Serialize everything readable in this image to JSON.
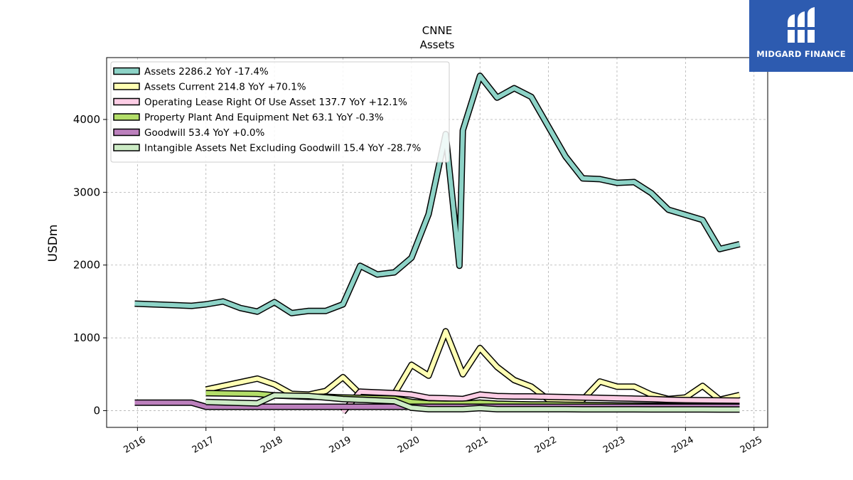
{
  "chart_data": {
    "type": "line",
    "title": "CNNE",
    "subtitle": "Assets",
    "ylabel": "USDm",
    "xlabel": "",
    "xlim": [
      2015.55,
      2025.2
    ],
    "ylim": [
      -230,
      4850
    ],
    "x_ticks": [
      2016,
      2017,
      2018,
      2019,
      2020,
      2021,
      2022,
      2023,
      2024,
      2025
    ],
    "x_tick_labels": [
      "2016",
      "2017",
      "2018",
      "2019",
      "2020",
      "2021",
      "2022",
      "2023",
      "2024",
      "2025"
    ],
    "y_ticks": [
      0,
      1000,
      2000,
      3000,
      4000
    ],
    "y_tick_labels": [
      "0",
      "1000",
      "2000",
      "3000",
      "4000"
    ],
    "grid": true,
    "legend_position": "top-left",
    "series": [
      {
        "name": "Assets  2286.2 YoY -17.4%",
        "color": "#8dd3c7",
        "x": [
          2015.96,
          2016.79,
          2017.0,
          2017.25,
          2017.5,
          2017.75,
          2018.0,
          2018.25,
          2018.5,
          2018.75,
          2019.0,
          2019.25,
          2019.5,
          2019.75,
          2020.0,
          2020.25,
          2020.5,
          2020.7,
          2020.75,
          2021.0,
          2021.25,
          2021.5,
          2021.75,
          2022.0,
          2022.25,
          2022.5,
          2022.75,
          2023.0,
          2023.25,
          2023.5,
          2023.75,
          2024.0,
          2024.25,
          2024.5,
          2024.79
        ],
        "y": [
          1470,
          1440,
          1460,
          1500,
          1410,
          1360,
          1490,
          1340,
          1370,
          1370,
          1460,
          1990,
          1870,
          1900,
          2100,
          2700,
          3800,
          1990,
          3850,
          4600,
          4300,
          4430,
          4310,
          3900,
          3490,
          3190,
          3180,
          3130,
          3140,
          2990,
          2760,
          2690,
          2620,
          2220,
          2286.2
        ]
      },
      {
        "name": "Assets Current  214.8 YoY +70.1%",
        "color": "#ffffb3",
        "x": [
          2017.0,
          2017.75,
          2018.0,
          2018.25,
          2018.5,
          2018.75,
          2019.0,
          2019.25,
          2019.5,
          2019.75,
          2020.0,
          2020.25,
          2020.5,
          2020.75,
          2021.0,
          2021.25,
          2021.5,
          2021.75,
          2022.0,
          2022.25,
          2022.5,
          2022.75,
          2023.0,
          2023.25,
          2023.5,
          2023.75,
          2024.0,
          2024.25,
          2024.5,
          2024.79
        ],
        "y": [
          290,
          440,
          360,
          230,
          220,
          270,
          460,
          230,
          230,
          230,
          630,
          480,
          1090,
          500,
          860,
          600,
          420,
          330,
          150,
          150,
          150,
          400,
          330,
          330,
          220,
          160,
          180,
          340,
          150,
          214.8
        ]
      },
      {
        "name": "Operating Lease Right Of Use Asset  137.7 YoY +12.1%",
        "color": "#fccde5",
        "x": [
          2019.0,
          2019.25,
          2019.5,
          2019.75,
          2020.0,
          2020.25,
          2020.5,
          2020.75,
          2021.0,
          2021.25,
          2021.5,
          2021.75,
          2022.0,
          2022.25,
          2022.5,
          2022.75,
          2023.0,
          2023.25,
          2023.5,
          2023.75,
          2024.0,
          2024.25,
          2024.5,
          2024.79
        ],
        "y": [
          -20,
          260,
          250,
          240,
          220,
          175,
          170,
          160,
          220,
          200,
          195,
          195,
          190,
          185,
          180,
          175,
          170,
          165,
          160,
          150,
          145,
          142,
          140,
          137.7
        ]
      },
      {
        "name": "Property Plant And Equipment Net  63.1 YoY -0.3%",
        "color": "#b3de69",
        "x": [
          2017.0,
          2017.75,
          2018.0,
          2018.25,
          2018.5,
          2018.75,
          2019.0,
          2019.25,
          2019.5,
          2019.75,
          2020.0,
          2020.25,
          2020.5,
          2020.75,
          2021.0,
          2021.25,
          2021.5,
          2021.75,
          2022.0,
          2022.25,
          2022.5,
          2022.75,
          2023.0,
          2023.25,
          2023.5,
          2023.75,
          2024.0,
          2024.25,
          2024.5,
          2024.79
        ],
        "y": [
          240,
          230,
          210,
          200,
          190,
          190,
          180,
          175,
          170,
          165,
          120,
          100,
          95,
          95,
          110,
          95,
          90,
          85,
          85,
          80,
          78,
          75,
          72,
          70,
          68,
          66,
          64,
          63,
          63,
          63.1
        ]
      },
      {
        "name": "Goodwill  53.4 YoY +0.0%",
        "color": "#bc80bd",
        "x": [
          2015.96,
          2016.79,
          2017.0,
          2017.75,
          2018.0,
          2018.75,
          2019.0,
          2019.75,
          2020.0,
          2020.75,
          2021.0,
          2021.75,
          2022.0,
          2022.75,
          2023.0,
          2023.75,
          2024.0,
          2024.79
        ],
        "y": [
          110,
          110,
          53.4,
          53.4,
          53.4,
          53.4,
          53.4,
          53.4,
          53.4,
          53.4,
          53.4,
          53.4,
          53.4,
          53.4,
          53.4,
          53.4,
          53.4,
          53.4
        ]
      },
      {
        "name": "Intangible Assets Net Excluding Goodwill  15.4 YoY -28.7%",
        "color": "#ccebc5",
        "x": [
          2017.0,
          2017.75,
          2018.0,
          2018.25,
          2018.5,
          2018.75,
          2019.0,
          2019.25,
          2019.5,
          2019.75,
          2020.0,
          2020.25,
          2020.5,
          2020.75,
          2021.0,
          2021.25,
          2021.5,
          2021.75,
          2022.0,
          2022.25,
          2022.5,
          2022.75,
          2023.0,
          2023.25,
          2023.5,
          2023.75,
          2024.0,
          2024.25,
          2024.5,
          2024.79
        ],
        "y": [
          120,
          100,
          210,
          205,
          200,
          180,
          160,
          150,
          140,
          130,
          40,
          20,
          20,
          20,
          35,
          20,
          20,
          20,
          20,
          20,
          18,
          18,
          18,
          18,
          17,
          17,
          16,
          16,
          15.5,
          15.4
        ]
      }
    ]
  },
  "logo": {
    "text": "MIDGARD FINANCE",
    "bg_color": "#2d5bb0"
  }
}
